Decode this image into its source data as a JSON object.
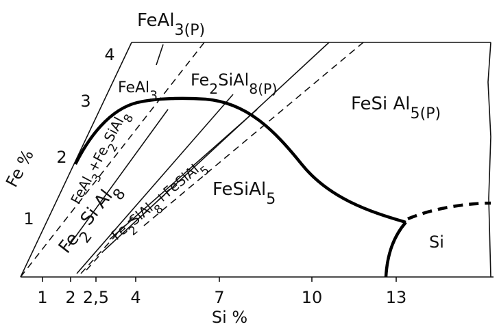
{
  "x_axis": {
    "label": "Si %",
    "ticks": [
      "1",
      "2",
      "2,5",
      "4",
      "7",
      "10",
      "13"
    ]
  },
  "y_axis": {
    "label": "Fe %",
    "ticks": [
      "1",
      "2",
      "3",
      "4"
    ]
  },
  "regions": [
    {
      "parts": [
        "FeAl",
        "3(P)"
      ]
    },
    {
      "parts": [
        "FeAl",
        "3"
      ]
    },
    {
      "parts": [
        "Fe",
        "2",
        "SiAl",
        "8(P)"
      ]
    },
    {
      "parts": [
        "FeSi Al",
        "5(P)"
      ]
    },
    {
      "parts": [
        "FeSiAl",
        "5"
      ]
    },
    {
      "parts": [
        "Si"
      ]
    },
    {
      "parts": [
        "FeAl",
        "3",
        "+Fe",
        "2",
        "SiAl",
        "8"
      ]
    },
    {
      "parts": [
        "Fe",
        "2",
        " Si Al",
        "8"
      ]
    },
    {
      "parts": [
        "Fe",
        "2",
        "SiAl",
        "8",
        "+FeSiAl",
        "5"
      ]
    }
  ]
}
